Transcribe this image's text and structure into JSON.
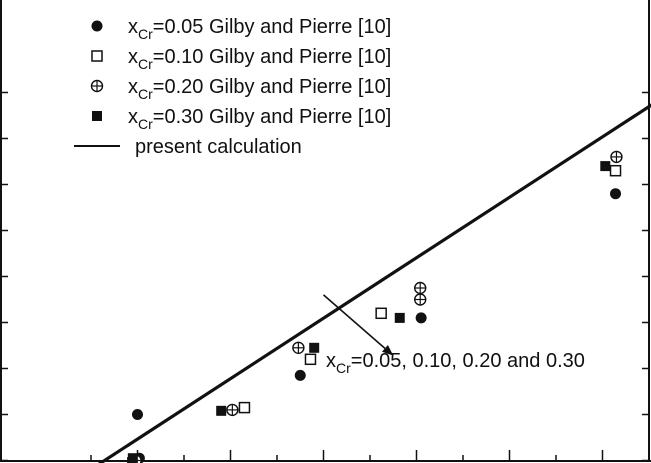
{
  "chart_data": {
    "type": "scatter",
    "title": "",
    "xlabel": "",
    "ylabel": "",
    "xlim": [
      0,
      7
    ],
    "ylim": [
      0,
      10
    ],
    "grid": false,
    "legend_placement": "top-left",
    "x_tick_values": [
      0.5,
      1,
      1.5,
      2,
      2.5,
      3,
      3.5,
      4,
      4.5,
      5,
      5.5,
      6,
      6.5
    ],
    "y_tick_values": [
      1,
      2,
      3,
      4,
      5,
      6,
      7,
      8,
      9
    ],
    "series": [
      {
        "name": "x_Cr=0.05 Gilby and Pierre [10]",
        "legend_prefix": "x",
        "legend_sub": "Cr",
        "legend_suffix": "=0.05 Gilby and Pierre [10]",
        "marker": "filled-circle",
        "x": [
          1.02,
          1.0,
          2.75,
          4.05,
          6.14
        ],
        "y": [
          1.05,
          2.0,
          2.85,
          4.1,
          6.8
        ]
      },
      {
        "name": "x_Cr=0.10 Gilby and Pierre [10]",
        "legend_prefix": "x",
        "legend_sub": "Cr",
        "legend_suffix": "=0.10 Gilby and Pierre [10]",
        "marker": "open-square",
        "x": [
          0.95,
          2.15,
          2.86,
          3.62,
          6.14
        ],
        "y": [
          0.95,
          2.15,
          3.2,
          4.2,
          7.3
        ]
      },
      {
        "name": "x_Cr=0.20 Gilby and Pierre [10]",
        "legend_prefix": "x",
        "legend_sub": "Cr",
        "legend_suffix": "=0.20 Gilby and Pierre [10]",
        "marker": "circle-plus",
        "x": [
          0.98,
          2.02,
          2.73,
          4.04,
          4.04,
          6.15
        ],
        "y": [
          1.0,
          2.1,
          3.45,
          4.5,
          4.75,
          7.6
        ]
      },
      {
        "name": "x_Cr=0.30 Gilby and Pierre [10]",
        "legend_prefix": "x",
        "legend_sub": "Cr",
        "legend_suffix": "=0.30 Gilby and Pierre [10]",
        "marker": "filled-square",
        "x": [
          0.95,
          1.9,
          2.9,
          3.82,
          6.03
        ],
        "y": [
          1.05,
          2.08,
          3.45,
          4.1,
          7.4
        ]
      },
      {
        "name": "present calculation",
        "legend_text": "present calculation",
        "marker": "line",
        "x": [
          0.57,
          7.0
        ],
        "y": [
          0.9,
          9.35
        ]
      }
    ],
    "annotation": {
      "prefix": "x",
      "sub": "Cr",
      "suffix": "=0.05, 0.10, 0.20 and 0.30",
      "arrow_from": [
        3.0,
        4.6
      ],
      "arrow_to": [
        3.75,
        3.28
      ]
    }
  }
}
